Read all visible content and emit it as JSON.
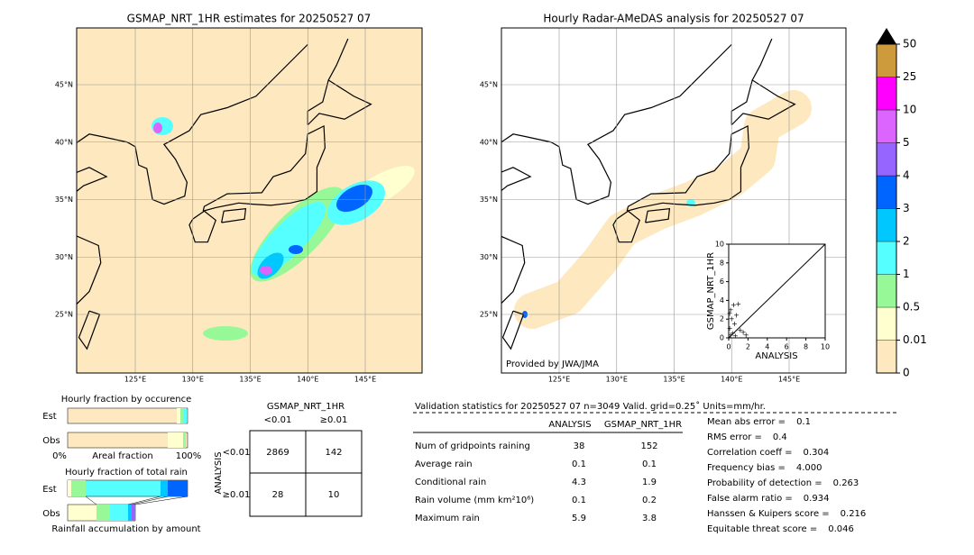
{
  "left_map": {
    "title": "GSMAP_NRT_1HR estimates for 20250527 07",
    "lat_labels": [
      "45°N",
      "40°N",
      "35°N",
      "30°N",
      "25°N"
    ],
    "lon_labels": [
      "125°E",
      "130°E",
      "135°E",
      "140°E",
      "145°E"
    ]
  },
  "right_map": {
    "title": "Hourly Radar-AMeDAS analysis for 20250527 07",
    "lat_labels": [
      "45°N",
      "40°N",
      "35°N",
      "30°N",
      "25°N"
    ],
    "lon_labels": [
      "125°E",
      "130°E",
      "135°E",
      "140°E",
      "145°E"
    ],
    "credit": "Provided by JWA/JMA",
    "inset": {
      "xlabel": "ANALYSIS",
      "ylabel": "GSMAP_NRT_1HR",
      "xticks": [
        0,
        2,
        4,
        6,
        8,
        10
      ],
      "yticks": [
        0,
        2,
        4,
        6,
        8,
        10
      ]
    }
  },
  "colorbar": {
    "levels": [
      0,
      0.01,
      0.5,
      1,
      2,
      3,
      4,
      5,
      10,
      25,
      50
    ],
    "colors": [
      "#fde8c0",
      "#ffffd0",
      "#96f896",
      "#55ffff",
      "#00c8ff",
      "#0064ff",
      "#9664ff",
      "#dc64ff",
      "#ff00ff",
      "#cd9b3c"
    ]
  },
  "occurrence": {
    "title": "Hourly fraction by occurence",
    "rows": [
      "Est",
      "Obs"
    ],
    "axis_left": "0%",
    "axis_label": "Areal fraction",
    "axis_right": "100%"
  },
  "total_rain": {
    "title": "Hourly fraction of total rain",
    "rows": [
      "Est",
      "Obs"
    ],
    "footer": "Rainfall accumulation by amount"
  },
  "contingency": {
    "col_title": "GSMAP_NRT_1HR",
    "cols": [
      "<0.01",
      "≥0.01"
    ],
    "row_title": "ANALYSIS",
    "rows": [
      "<0.01",
      "≥0.01"
    ],
    "cells": [
      [
        2869,
        142
      ],
      [
        28,
        10
      ]
    ]
  },
  "validation": {
    "header": "Validation statistics for 20250527 07  n=3049 Valid. grid=0.25˚ Units=mm/hr.",
    "columns": [
      "ANALYSIS",
      "GSMAP_NRT_1HR"
    ],
    "rows": [
      [
        "Num of gridpoints raining",
        38,
        152
      ],
      [
        "Average rain",
        0.1,
        0.1
      ],
      [
        "Conditional rain",
        4.3,
        1.9
      ],
      [
        "Rain volume (mm km²10⁶)",
        0.1,
        0.2
      ],
      [
        "Maximum rain",
        5.9,
        3.8
      ]
    ],
    "scores": [
      [
        "Mean abs error =",
        0.1
      ],
      [
        "RMS error =",
        0.4
      ],
      [
        "Correlation coeff =",
        0.304
      ],
      [
        "Frequency bias =",
        "4.000"
      ],
      [
        "Probability of detection =",
        0.263
      ],
      [
        "False alarm ratio =",
        0.934
      ],
      [
        "Hanssen & Kuipers score =",
        0.216
      ],
      [
        "Equitable threat score =",
        0.046
      ]
    ]
  }
}
